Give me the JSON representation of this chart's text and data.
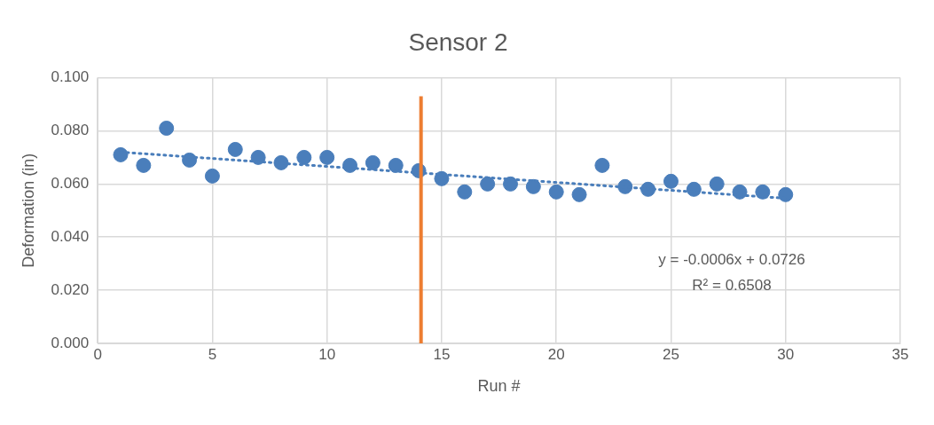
{
  "chart_data": {
    "type": "scatter",
    "title": "Sensor 2",
    "xlabel": "Run #",
    "ylabel": "Deformation (in)",
    "x": [
      1,
      2,
      3,
      4,
      5,
      6,
      7,
      8,
      9,
      10,
      11,
      12,
      13,
      14,
      15,
      16,
      17,
      18,
      19,
      20,
      21,
      22,
      23,
      24,
      25,
      26,
      27,
      28,
      29,
      30
    ],
    "series": [
      {
        "color": "#4a7ebb",
        "marker": "circle",
        "values": [
          0.071,
          0.067,
          0.081,
          0.069,
          0.063,
          0.073,
          0.07,
          0.068,
          0.07,
          0.07,
          0.067,
          0.068,
          0.067,
          0.065,
          0.062,
          0.057,
          0.06,
          0.06,
          0.059,
          0.057,
          0.056,
          0.067,
          0.059,
          0.058,
          0.061,
          0.058,
          0.06,
          0.057,
          0.057,
          0.056
        ]
      },
      {
        "type": "line",
        "color": "#4a7ebb",
        "line_style": "dotted",
        "marker": "none",
        "x": [
          1,
          30
        ],
        "values": [
          0.072,
          0.0546
        ]
      }
    ],
    "ref_lines": [
      {
        "axis": "x",
        "value": 14.1,
        "color": "#ed7d31"
      }
    ],
    "annotations": [
      "y = -0.0006x + 0.0726",
      "R² = 0.6508"
    ],
    "xlim": [
      0,
      35
    ],
    "xticks": [
      0,
      5,
      10,
      15,
      20,
      25,
      30,
      35
    ],
    "ylim": [
      0,
      0.1
    ],
    "yticks": [
      {
        "value": 0,
        "label": "0.000"
      },
      {
        "value": 0.02,
        "label": "0.020"
      },
      {
        "value": 0.04,
        "label": "0.040"
      },
      {
        "value": 0.06,
        "label": "0.060"
      },
      {
        "value": 0.08,
        "label": "0.080"
      },
      {
        "value": 0.1,
        "label": "0.100"
      }
    ],
    "grid": true,
    "legend": false
  }
}
